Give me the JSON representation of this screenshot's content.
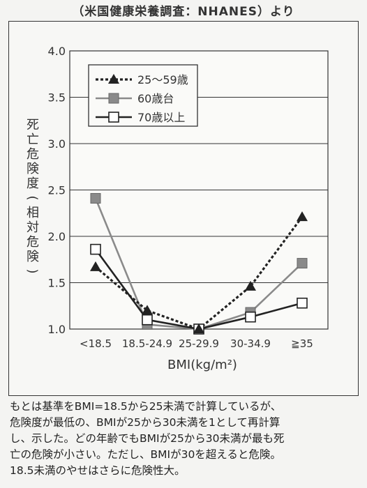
{
  "source_line": "（米国健康栄養調査：NHANES）より",
  "chart_data": {
    "type": "line",
    "categories": [
      "<18.5",
      "18.5-24.9",
      "25-29.9",
      "30-34.9",
      "≧35"
    ],
    "series": [
      {
        "name": "25〜59歳",
        "values": [
          1.67,
          1.2,
          1.0,
          1.46,
          2.21
        ],
        "color": "#222222",
        "marker": "triangle",
        "line": "dotted"
      },
      {
        "name": "60歳台",
        "values": [
          2.41,
          1.05,
          1.0,
          1.18,
          1.71
        ],
        "color": "#8a8a8a",
        "marker": "square-filled",
        "line": "solid"
      },
      {
        "name": "70歳以上",
        "values": [
          1.86,
          1.1,
          1.0,
          1.13,
          1.28
        ],
        "color": "#222222",
        "marker": "square-open",
        "line": "solid"
      }
    ],
    "xlabel": "BMI(kg/m²)",
    "ylabel": "死亡危険度(相対危険)",
    "ylim": [
      1.0,
      4.0
    ],
    "yticks": [
      "1.0",
      "1.5",
      "2.0",
      "2.5",
      "3.0",
      "3.5",
      "4.0"
    ],
    "grid": true,
    "legend_position": "top-left"
  },
  "caption_lines": [
    "もとは基準をBMI=18.5から25未満で計算しているが、",
    "危険度が最低の、BMIが25から30未満を1として再計算",
    "し、示した。どの年齢でもBMIが25から30未満が最も死",
    "亡の危険が小さい。ただし、BMIが30を超えると危険。",
    "18.5未満のやせはさらに危険性大。"
  ]
}
